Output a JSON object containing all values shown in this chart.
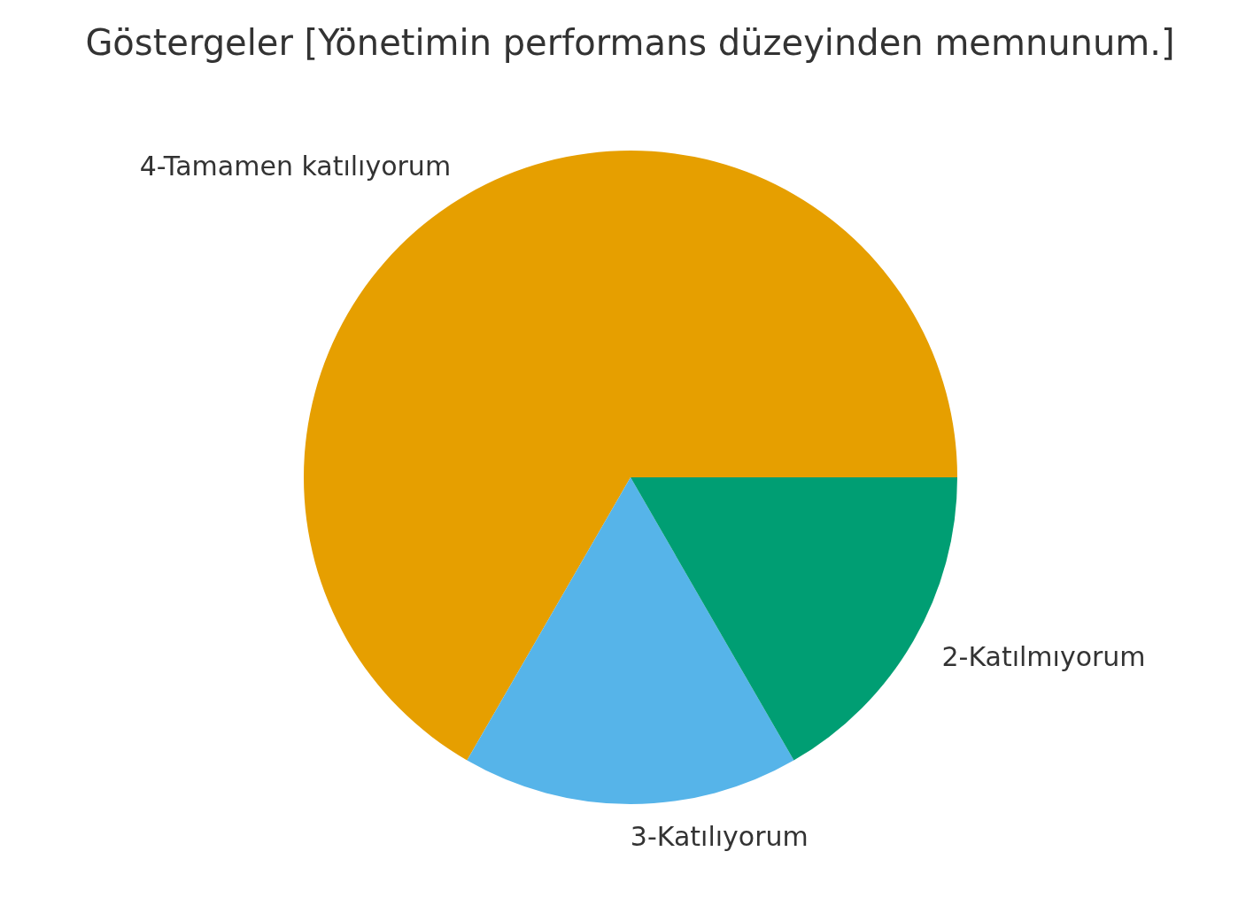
{
  "chart_data": {
    "type": "pie",
    "title": "Göstergeler [Yönetimin performans düzeyinden memnunum.]",
    "categories": [
      "4-Tamamen katılıyorum",
      "3-Katılıyorum",
      "2-Katılmıyorum"
    ],
    "values": [
      66.66,
      16.67,
      16.67
    ],
    "colors": [
      "#e69f00",
      "#56b4e9",
      "#009e73"
    ]
  }
}
